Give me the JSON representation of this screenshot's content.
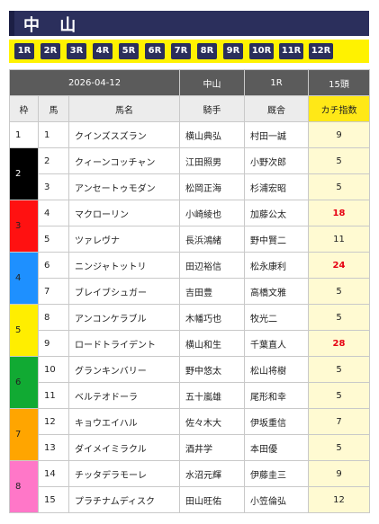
{
  "venue_title": "中 山",
  "race_tabs": [
    "1R",
    "2R",
    "3R",
    "4R",
    "5R",
    "6R",
    "7R",
    "8R",
    "9R",
    "10R",
    "11R",
    "12R"
  ],
  "info": {
    "date": "2026-04-12",
    "venue": "中山",
    "race": "1R",
    "runners": "15頭"
  },
  "columns": {
    "waku": "枠",
    "num": "馬",
    "horse": "馬名",
    "jockey": "騎手",
    "trainer": "厩舎",
    "score": "カチ指数"
  },
  "rows": [
    {
      "num": "1",
      "horse": "クインズスズラン",
      "jockey": "横山典弘",
      "trainer": "村田一誠",
      "score": "9"
    },
    {
      "num": "2",
      "horse": "クィーンコッチャン",
      "jockey": "江田照男",
      "trainer": "小野次郎",
      "score": "5"
    },
    {
      "num": "3",
      "horse": "アンセートゥモダン",
      "jockey": "松岡正海",
      "trainer": "杉浦宏昭",
      "score": "5"
    },
    {
      "num": "4",
      "horse": "マクローリン",
      "jockey": "小崎綾也",
      "trainer": "加藤公太",
      "score": "18"
    },
    {
      "num": "5",
      "horse": "ツァレヴナ",
      "jockey": "長浜鴻緒",
      "trainer": "野中賢二",
      "score": "11"
    },
    {
      "num": "6",
      "horse": "ニンジャトットリ",
      "jockey": "田辺裕信",
      "trainer": "松永康利",
      "score": "24"
    },
    {
      "num": "7",
      "horse": "ブレイブシュガー",
      "jockey": "吉田豊",
      "trainer": "高橋文雅",
      "score": "5"
    },
    {
      "num": "8",
      "horse": "アンコンケラブル",
      "jockey": "木幡巧也",
      "trainer": "牧光二",
      "score": "5"
    },
    {
      "num": "9",
      "horse": "ロードトライデント",
      "jockey": "横山和生",
      "trainer": "千葉直人",
      "score": "28"
    },
    {
      "num": "10",
      "horse": "グランキンバリー",
      "jockey": "野中悠太",
      "trainer": "松山将樹",
      "score": "5"
    },
    {
      "num": "11",
      "horse": "ベルテオドーラ",
      "jockey": "五十嵐雄",
      "trainer": "尾形和幸",
      "score": "5"
    },
    {
      "num": "12",
      "horse": "キョウエイハル",
      "jockey": "佐々木大",
      "trainer": "伊坂重信",
      "score": "7"
    },
    {
      "num": "13",
      "horse": "ダイメイミラクル",
      "jockey": "酒井学",
      "trainer": "本田優",
      "score": "5"
    },
    {
      "num": "14",
      "horse": "チッタデラモーレ",
      "jockey": "水沼元輝",
      "trainer": "伊藤圭三",
      "score": "9"
    },
    {
      "num": "15",
      "horse": "プラチナムディスク",
      "jockey": "田山旺佑",
      "trainer": "小笠倫弘",
      "score": "12"
    }
  ],
  "waku_labels": [
    "1",
    "2",
    "3",
    "4",
    "5",
    "6",
    "7",
    "8"
  ],
  "colors": {
    "title_bg": "#2b2f5c",
    "race_bar": "#fff200",
    "score_head": "#ffe817",
    "score_cell": "#fffad2",
    "hot_score": "#e60012",
    "waku": [
      "#ffffff",
      "#000000",
      "#ff1111",
      "#1e90ff",
      "#ffee00",
      "#11aa33",
      "#ffa500",
      "#ff77c8"
    ]
  }
}
